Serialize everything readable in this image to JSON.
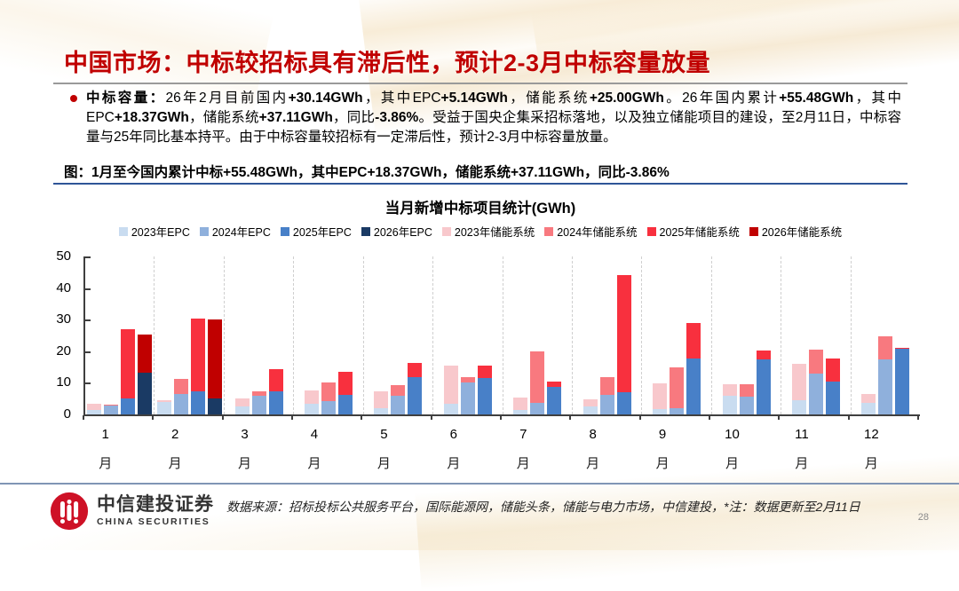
{
  "slide": {
    "title": "中国市场：中标较招标具有滞后性，预计2-3月中标容量放量",
    "page_number": "28"
  },
  "bullet": {
    "segments": [
      {
        "text": "中标容量：",
        "bold": true
      },
      {
        "text": "26年2月目前国内",
        "bold": false
      },
      {
        "text": "+30.14GWh",
        "bold": true
      },
      {
        "text": "，其中EPC",
        "bold": false
      },
      {
        "text": "+5.14GWh",
        "bold": true
      },
      {
        "text": "，储能系统",
        "bold": false
      },
      {
        "text": "+25.00GWh",
        "bold": true
      },
      {
        "text": "。26年国内累计",
        "bold": false
      },
      {
        "text": "+55.48GWh",
        "bold": true
      },
      {
        "text": "，其中EPC",
        "bold": false
      },
      {
        "text": "+18.37GWh",
        "bold": true
      },
      {
        "text": "，储能系统",
        "bold": false
      },
      {
        "text": "+37.11GWh",
        "bold": true
      },
      {
        "text": "，同比",
        "bold": false
      },
      {
        "text": "-3.86%",
        "bold": true
      },
      {
        "text": "。受益于国央企集采招标落地，以及独立储能项目的建设，至2月11日，中标容量与25年同比基本持平。由于中标容量较招标有一定滞后性，预计2-3月中标容量放量。",
        "bold": false
      }
    ]
  },
  "figure_caption": "图：1月至今国内累计中标+55.48GWh，其中EPC+18.37GWh，储能系统+37.11GWh，同比-3.86%",
  "chart_data": {
    "type": "bar",
    "stacked": true,
    "title": "当月新增中标项目统计(GWh)",
    "unit": "GWh",
    "categories": [
      "1",
      "2",
      "3",
      "4",
      "5",
      "6",
      "7",
      "8",
      "9",
      "10",
      "11",
      "12"
    ],
    "category_suffix": "月",
    "ylim": [
      0,
      50
    ],
    "yticks": [
      0,
      10,
      20,
      30,
      40,
      50
    ],
    "legend_position": "top",
    "grid": "vertical-dashed-between-groups",
    "series": [
      {
        "name": "2023年EPC",
        "color": "#C9DCF0",
        "values": [
          1.5,
          4.0,
          2.5,
          3.3,
          2.0,
          3.4,
          1.5,
          2.6,
          1.7,
          5.9,
          4.5,
          3.6
        ]
      },
      {
        "name": "2024年EPC",
        "color": "#8FB0DC",
        "values": [
          2.8,
          6.5,
          6.0,
          4.2,
          6.0,
          10.1,
          3.7,
          6.3,
          2.1,
          5.5,
          13.0,
          17.3
        ]
      },
      {
        "name": "2025年EPC",
        "color": "#4880C8",
        "values": [
          5.0,
          7.2,
          7.4,
          6.1,
          11.7,
          11.4,
          8.6,
          7.0,
          17.6,
          17.3,
          10.5,
          20.8
        ]
      },
      {
        "name": "2026年EPC",
        "color": "#1A3A64",
        "values": [
          13.23,
          5.14,
          null,
          null,
          null,
          null,
          null,
          null,
          null,
          null,
          null,
          null
        ]
      },
      {
        "name": "2023年储能系统",
        "color": "#F8C8CC",
        "values": [
          1.8,
          0.5,
          2.7,
          4.2,
          5.3,
          12.2,
          4.0,
          2.1,
          8.1,
          3.6,
          11.4,
          2.8
        ]
      },
      {
        "name": "2024年储能系统",
        "color": "#F8797F",
        "values": [
          0.4,
          4.7,
          1.2,
          5.8,
          3.3,
          1.7,
          16.3,
          5.6,
          12.7,
          4.0,
          7.4,
          7.3
        ]
      },
      {
        "name": "2025年储能系统",
        "color": "#F8303E",
        "values": [
          22.0,
          23.3,
          7.0,
          7.4,
          4.7,
          4.0,
          1.7,
          37.0,
          11.2,
          2.8,
          7.1,
          0.4
        ]
      },
      {
        "name": "2026年储能系统",
        "color": "#C00000",
        "values": [
          12.11,
          25.0,
          null,
          null,
          null,
          null,
          null,
          null,
          null,
          null,
          null,
          null
        ]
      }
    ]
  },
  "footer": {
    "source_note": "数据来源：招标投标公共服务平台，国际能源网，储能头条，储能与电力市场，中信建投，*注：数据更新至2月11日",
    "logo_text_cn": "中信建投证券",
    "logo_text_en": "CHINA SECURITIES"
  },
  "colors": {
    "title_red": "#C00000",
    "caption_rule_blue": "#2F5597",
    "footer_rule_blue": "#8095B5",
    "axis": "#3f3f3f"
  }
}
